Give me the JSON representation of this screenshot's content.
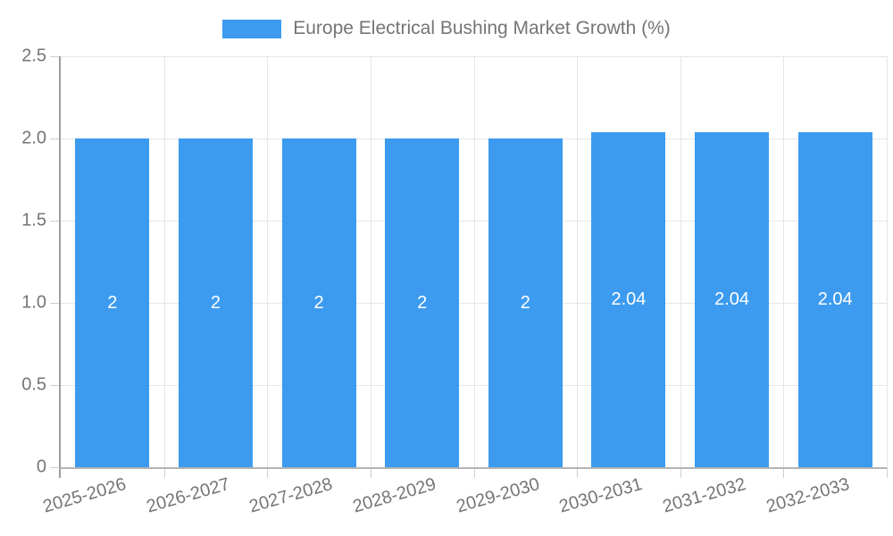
{
  "legend": {
    "label": "Europe Electrical Bushing Market Growth (%)"
  },
  "chart_data": {
    "type": "bar",
    "title": "Europe Electrical Bushing Market Growth (%)",
    "categories": [
      "2025-2026",
      "2026-2027",
      "2027-2028",
      "2028-2029",
      "2029-2030",
      "2030-2031",
      "2031-2032",
      "2032-2033"
    ],
    "values": [
      2,
      2,
      2,
      2,
      2,
      2.04,
      2.04,
      2.04
    ],
    "bar_labels": [
      "2",
      "2",
      "2",
      "2",
      "2",
      "2.04",
      "2.04",
      "2.04"
    ],
    "series_name": "Europe Electrical Bushing Market Growth (%)",
    "xlabel": "",
    "ylabel": "",
    "ylim": [
      0,
      2.5
    ],
    "yticks": [
      0,
      0.5,
      1,
      1.5,
      2,
      2.5
    ],
    "ytick_labels": [
      "0",
      "0.5",
      "1.0",
      "1.5",
      "2.0",
      "2.5"
    ],
    "grid": true,
    "legend_position": "top"
  },
  "colors": {
    "bar": "#3C9BEF",
    "grid": "#E6E6E6",
    "axis_y": "#9E9E9E",
    "axis_x": "#B3B3B3",
    "tick": "#CFCFCF",
    "tick_text": "#757575",
    "bar_label_text": "#FFFFFF",
    "background": "#FFFFFF"
  }
}
